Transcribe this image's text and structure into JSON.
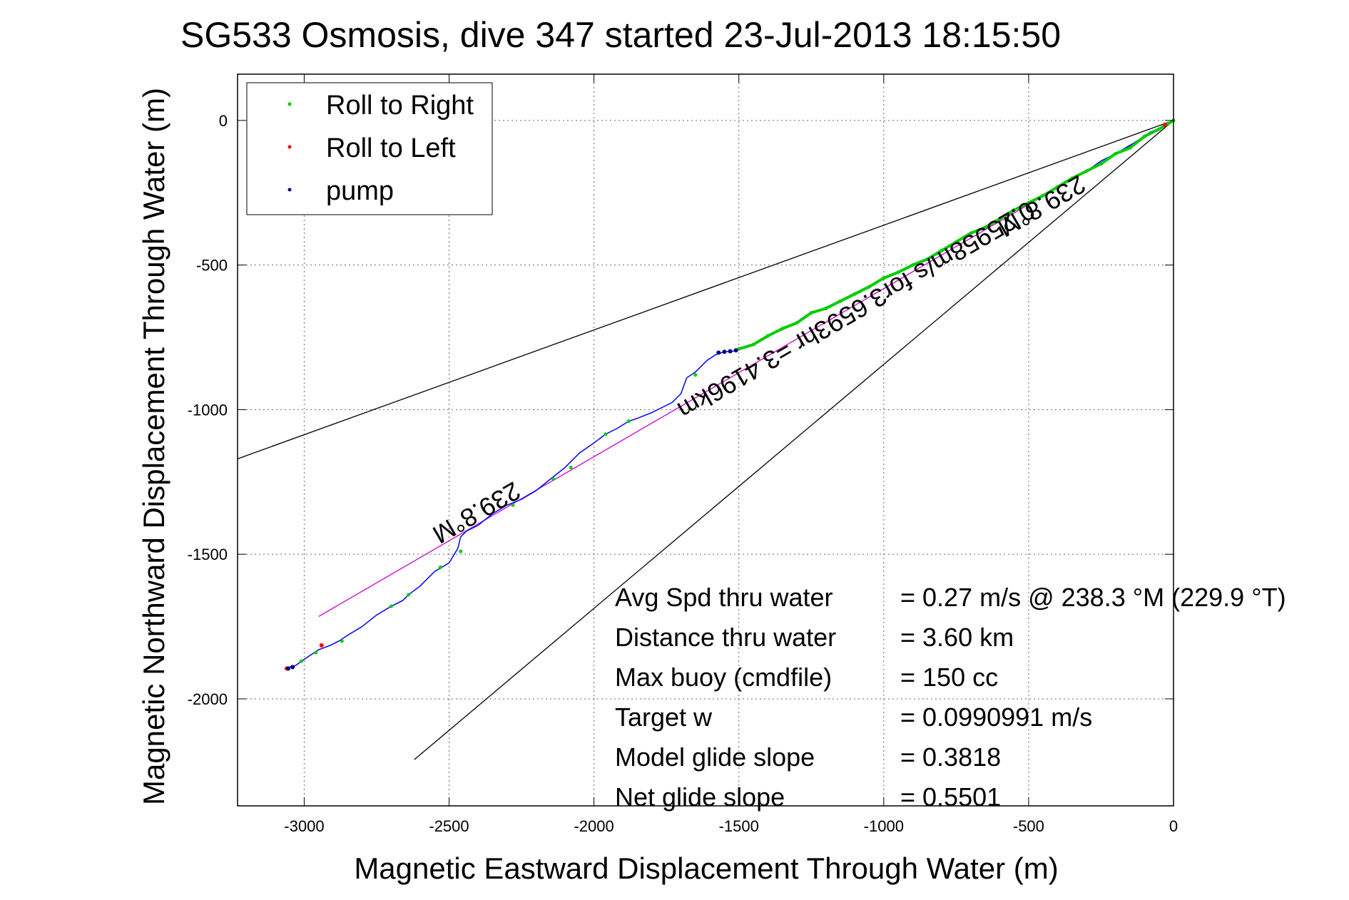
{
  "chart_data": {
    "type": "line",
    "title": "SG533 Osmosis, dive 347 started 23-Jul-2013 18:15:50",
    "xlabel": "Magnetic Eastward Displacement Through Water (m)",
    "ylabel": "Magnetic Northward Displacement Through Water (m)",
    "xlim": [
      -3230,
      0
    ],
    "ylim": [
      -2370,
      160
    ],
    "xticks": [
      -3000,
      -2500,
      -2000,
      -1500,
      -1000,
      -500,
      0
    ],
    "yticks": [
      0,
      -500,
      -1000,
      -1500,
      -2000
    ],
    "xtick_labels": [
      "-3000",
      "-2500",
      "-2000",
      "-1500",
      "-1000",
      "-500",
      "0"
    ],
    "ytick_labels": [
      "0",
      "-500",
      "-1000",
      "-1500",
      "-2000"
    ],
    "grid": true,
    "legend_position": "top-left",
    "legend": [
      {
        "label": "Roll to Right",
        "color": "#00cc00"
      },
      {
        "label": "Roll to Left",
        "color": "#ff0000"
      },
      {
        "label": "pump",
        "color": "#000080"
      }
    ],
    "track": {
      "color": "#0000ff",
      "x": [
        0,
        -30,
        -80,
        -140,
        -200,
        -250,
        -300,
        -350,
        -400,
        -450,
        -500,
        -550,
        -600,
        -650,
        -700,
        -750,
        -800,
        -850,
        -900,
        -950,
        -1000,
        -1050,
        -1100,
        -1150,
        -1200,
        -1250,
        -1300,
        -1350,
        -1400,
        -1450,
        -1500,
        -1520,
        -1550,
        -1580,
        -1610,
        -1650,
        -1680,
        -1700,
        -1730,
        -1760,
        -1800,
        -1850,
        -1880,
        -1920,
        -1960,
        -2000,
        -2050,
        -2100,
        -2150,
        -2200,
        -2250,
        -2300,
        -2350,
        -2400,
        -2440,
        -2460,
        -2470,
        -2500,
        -2550,
        -2600,
        -2640,
        -2660,
        -2700,
        -2750,
        -2800,
        -2850,
        -2880,
        -2910,
        -2950,
        -2980,
        -3010,
        -3030,
        -3050
      ],
      "y": [
        0,
        -20,
        -40,
        -80,
        -115,
        -140,
        -175,
        -200,
        -230,
        -260,
        -285,
        -310,
        -340,
        -370,
        -390,
        -420,
        -450,
        -480,
        -500,
        -525,
        -545,
        -575,
        -600,
        -625,
        -650,
        -665,
        -700,
        -720,
        -745,
        -775,
        -790,
        -798,
        -800,
        -810,
        -830,
        -870,
        -890,
        -945,
        -975,
        -990,
        -1010,
        -1030,
        -1040,
        -1065,
        -1085,
        -1115,
        -1150,
        -1200,
        -1240,
        -1280,
        -1310,
        -1330,
        -1360,
        -1400,
        -1420,
        -1440,
        -1480,
        -1530,
        -1560,
        -1610,
        -1640,
        -1660,
        -1680,
        -1710,
        -1750,
        -1780,
        -1800,
        -1815,
        -1830,
        -1850,
        -1870,
        -1885,
        -1890
      ]
    },
    "roll_right": {
      "color": "#00cc00",
      "x": [
        0,
        -50,
        -100,
        -150,
        -200,
        -250,
        -300,
        -350,
        -400,
        -450,
        -500,
        -550,
        -600,
        -650,
        -700,
        -750,
        -800,
        -850,
        -900,
        -950,
        -1000,
        -1050,
        -1100,
        -1150,
        -1200,
        -1250,
        -1300,
        -1350,
        -1400,
        -1450,
        -1500,
        -1650,
        -1880,
        -1960,
        -2080,
        -2140,
        -2280,
        -2460,
        -2530,
        -2640,
        -2700,
        -2870,
        -2960,
        -3010
      ],
      "y": [
        0,
        -30,
        -55,
        -95,
        -115,
        -150,
        -175,
        -200,
        -230,
        -260,
        -285,
        -310,
        -340,
        -370,
        -390,
        -420,
        -450,
        -480,
        -500,
        -525,
        -545,
        -575,
        -600,
        -625,
        -650,
        -665,
        -700,
        -720,
        -745,
        -775,
        -790,
        -880,
        -1040,
        -1085,
        -1200,
        -1240,
        -1330,
        -1490,
        -1545,
        -1640,
        -1680,
        -1800,
        -1840,
        -1870
      ]
    },
    "roll_left": {
      "color": "#ff0000",
      "x": [
        -30,
        -2940,
        -3060
      ],
      "y": [
        -15,
        -1815,
        -1895
      ]
    },
    "pump": {
      "color": "#000080",
      "x": [
        -1510,
        -1530,
        -1550,
        -1570,
        -3040,
        -3055
      ],
      "y": [
        -795,
        -798,
        -800,
        -803,
        -1890,
        -1895
      ]
    },
    "straight_lines": [
      {
        "name": "",
        "color": "#cc00cc",
        "x": [
          0,
          -2950
        ],
        "y": [
          0,
          -1715
        ]
      },
      {
        "name": "",
        "color": "#000000",
        "x": [
          0,
          -3230
        ],
        "y": [
          0,
          -1170
        ]
      },
      {
        "name": "",
        "color": "#000000",
        "x": [
          0,
          -2620
        ],
        "y": [
          0,
          -2210
        ]
      }
    ],
    "annotations": [
      {
        "text": "239.8°M",
        "x": -2420,
        "y": -1330
      },
      {
        "text": "239.8°M",
        "x": -470,
        "y": -270
      },
      {
        "text": "0.25958m/s for3.6593hr =3.4196km",
        "x": -1110,
        "y": -630
      }
    ],
    "stats": [
      {
        "label": "Avg Spd thru water",
        "value": "=  0.27 m/s @ 238.3 °M (229.9 °T)"
      },
      {
        "label": "Distance thru water",
        "value": "=  3.60 km"
      },
      {
        "label": "Max buoy (cmdfile)",
        "value": "= 150 cc"
      },
      {
        "label": "Target w",
        "value": "= 0.0990991 m/s"
      },
      {
        "label": "Model glide slope",
        "value": "= 0.3818"
      },
      {
        "label": "Net glide slope",
        "value": "= 0.5501"
      }
    ]
  }
}
